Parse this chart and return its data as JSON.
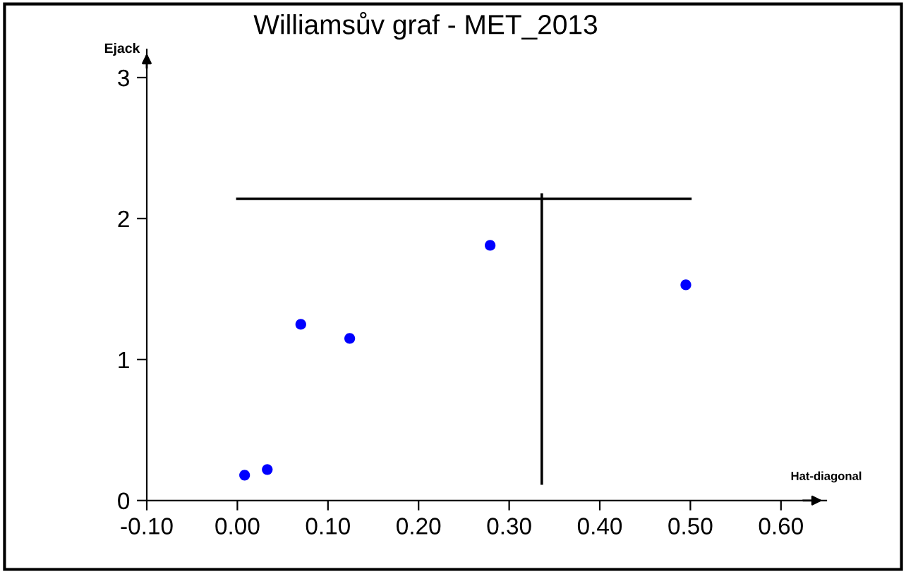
{
  "chart_data": {
    "type": "scatter",
    "title": "Williamsův graf - MET_2013",
    "xlabel": "Hat-diagonal",
    "ylabel": "Ejack",
    "xlim": [
      -0.1,
      0.65
    ],
    "ylim": [
      0,
      3.2
    ],
    "xticks": [
      {
        "value": -0.1,
        "label": "-0.10"
      },
      {
        "value": 0.0,
        "label": "0.00"
      },
      {
        "value": 0.1,
        "label": "0.10"
      },
      {
        "value": 0.2,
        "label": "0.20"
      },
      {
        "value": 0.3,
        "label": "0.30"
      },
      {
        "value": 0.4,
        "label": "0.40"
      },
      {
        "value": 0.5,
        "label": "0.50"
      },
      {
        "value": 0.6,
        "label": "0.60"
      }
    ],
    "yticks": [
      0,
      1,
      2,
      3
    ],
    "grid": false,
    "marker": "circle",
    "series": [
      {
        "color": "#0000ff",
        "x": [
          0.008,
          0.033,
          0.07,
          0.124,
          0.279,
          0.495
        ],
        "values": [
          0.18,
          0.22,
          1.25,
          1.15,
          1.81,
          1.53
        ]
      },
      {
        "type": "line",
        "color": "#000000",
        "marker": "none",
        "line_style": "solid",
        "x": [
          0.0,
          0.5
        ],
        "values": [
          2.14,
          2.14
        ]
      },
      {
        "type": "line",
        "color": "#000000",
        "marker": "none",
        "line_style": "solid",
        "x": [
          0.336,
          0.336
        ],
        "values": [
          0.12,
          2.17
        ]
      }
    ]
  }
}
